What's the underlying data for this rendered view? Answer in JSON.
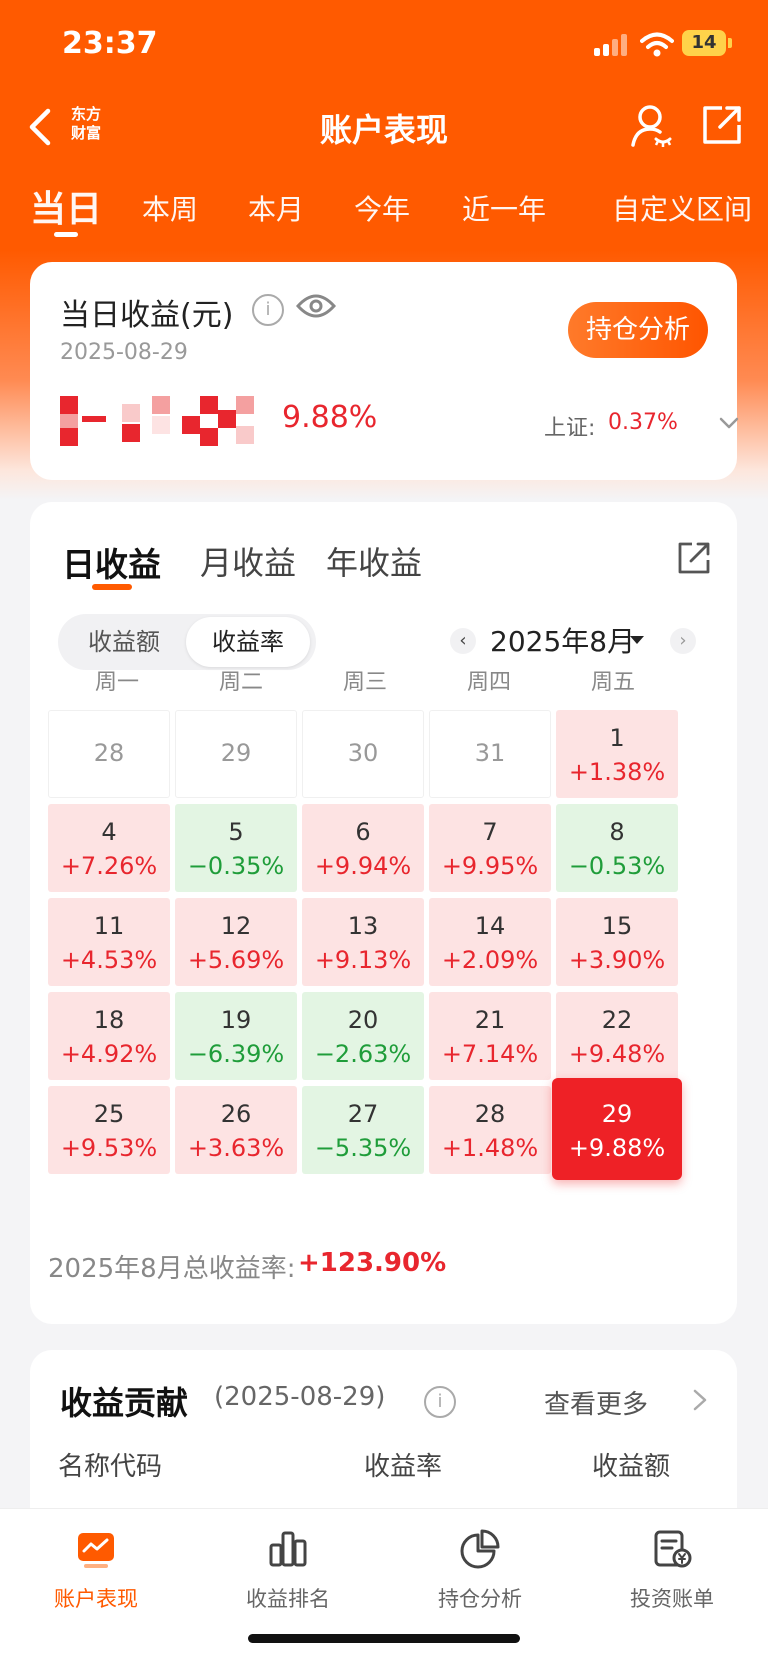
{
  "status_bar": {
    "time": "23:37",
    "battery": "14"
  },
  "nav": {
    "brand_line1": "东方",
    "brand_line2": "财富",
    "title": "账户表现"
  },
  "period_tabs": [
    "当日",
    "本周",
    "本月",
    "今年",
    "近一年",
    "自定义区间"
  ],
  "summary": {
    "title": "当日收益(元)",
    "info": "i",
    "date": "2025-08-29",
    "rate": "9.88%",
    "analysis_button": "持仓分析",
    "index_label": "上证:",
    "index_value": "0.37%"
  },
  "revenue_tabs": [
    "日收益",
    "月收益",
    "年收益"
  ],
  "toggle": {
    "amount": "收益额",
    "rate": "收益率",
    "selected": "收益率"
  },
  "month_nav": {
    "prev": "‹",
    "label": "2025年8月",
    "next": "›"
  },
  "weekdays": [
    "周一",
    "周二",
    "周三",
    "周四",
    "周五"
  ],
  "calendar": {
    "weeks": [
      [
        {
          "day": "28",
          "rate": "",
          "trend": "empty"
        },
        {
          "day": "29",
          "rate": "",
          "trend": "empty"
        },
        {
          "day": "30",
          "rate": "",
          "trend": "empty"
        },
        {
          "day": "31",
          "rate": "",
          "trend": "empty"
        },
        {
          "day": "1",
          "rate": "+1.38%",
          "trend": "up"
        }
      ],
      [
        {
          "day": "4",
          "rate": "+7.26%",
          "trend": "up"
        },
        {
          "day": "5",
          "rate": "−0.35%",
          "trend": "down"
        },
        {
          "day": "6",
          "rate": "+9.94%",
          "trend": "up"
        },
        {
          "day": "7",
          "rate": "+9.95%",
          "trend": "up"
        },
        {
          "day": "8",
          "rate": "−0.53%",
          "trend": "down"
        }
      ],
      [
        {
          "day": "11",
          "rate": "+4.53%",
          "trend": "up"
        },
        {
          "day": "12",
          "rate": "+5.69%",
          "trend": "up"
        },
        {
          "day": "13",
          "rate": "+9.13%",
          "trend": "up"
        },
        {
          "day": "14",
          "rate": "+2.09%",
          "trend": "up"
        },
        {
          "day": "15",
          "rate": "+3.90%",
          "trend": "up"
        }
      ],
      [
        {
          "day": "18",
          "rate": "+4.92%",
          "trend": "up"
        },
        {
          "day": "19",
          "rate": "−6.39%",
          "trend": "down"
        },
        {
          "day": "20",
          "rate": "−2.63%",
          "trend": "down"
        },
        {
          "day": "21",
          "rate": "+7.14%",
          "trend": "up"
        },
        {
          "day": "22",
          "rate": "+9.48%",
          "trend": "up"
        }
      ],
      [
        {
          "day": "25",
          "rate": "+9.53%",
          "trend": "up"
        },
        {
          "day": "26",
          "rate": "+3.63%",
          "trend": "up"
        },
        {
          "day": "27",
          "rate": "−5.35%",
          "trend": "down"
        },
        {
          "day": "28",
          "rate": "+1.48%",
          "trend": "up"
        },
        {
          "day": "29",
          "rate": "+9.88%",
          "trend": "today"
        }
      ]
    ],
    "total_label": "2025年8月总收益率:",
    "total_value": "+123.90%"
  },
  "contribution": {
    "title": "收益贡献",
    "date": "(2025-08-29)",
    "info": "i",
    "more": "查看更多",
    "columns": [
      "名称代码",
      "收益率",
      "收益额"
    ]
  },
  "tab_bar": [
    {
      "label": "账户表现",
      "icon": "chart-screen-icon",
      "active": true
    },
    {
      "label": "收益排名",
      "icon": "bar-chart-icon",
      "active": false
    },
    {
      "label": "持仓分析",
      "icon": "pie-chart-icon",
      "active": false
    },
    {
      "label": "投资账单",
      "icon": "bill-icon",
      "active": false
    }
  ],
  "colors": {
    "brand": "#ff5a00",
    "up": "#e8262e",
    "down": "#1f9d3a",
    "up_bg": "#fde3e3",
    "down_bg": "#e3f5e3"
  }
}
